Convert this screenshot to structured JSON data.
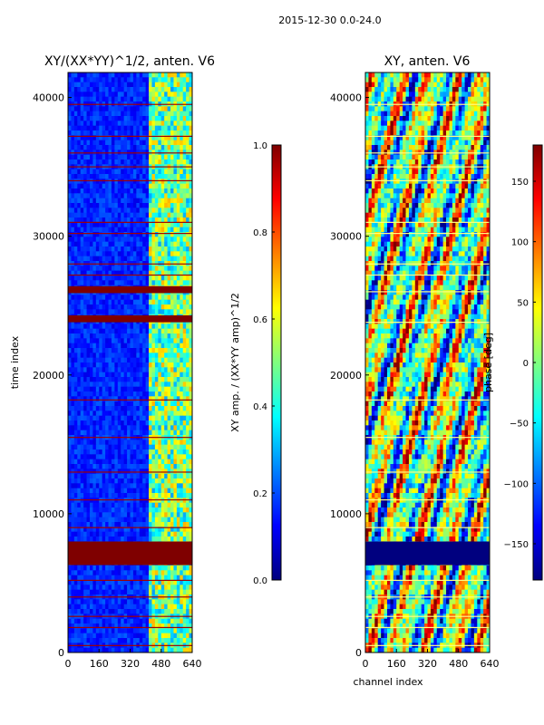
{
  "suptitle": "2015-12-30 0.0-24.0",
  "chart_data": [
    {
      "type": "heatmap",
      "title": "XY/(XX*YY)^1/2, anten. V6",
      "xlabel": "",
      "ylabel": "time index",
      "xlim": [
        0,
        640
      ],
      "ylim": [
        0,
        41800
      ],
      "xticks": [
        0,
        160,
        320,
        480,
        640
      ],
      "yticks": [
        0,
        10000,
        20000,
        30000,
        40000
      ],
      "colormap": "jet",
      "color_range": [
        0.0,
        1.0
      ],
      "colorbar_label": "XY amp. / (XX*YY amp)^1/2",
      "colorbar_ticks": [
        0.0,
        0.2,
        0.4,
        0.6,
        0.8,
        1.0
      ],
      "bright_channel_band": [
        420,
        640
      ],
      "flagged_time_bands": [
        [
          6300,
          8000
        ],
        [
          23800,
          24300
        ],
        [
          25900,
          26400
        ]
      ],
      "thin_flag_rows": [
        500,
        1800,
        2600,
        4000,
        5200,
        9000,
        11000,
        13000,
        15500,
        18200,
        27200,
        28000,
        30200,
        31000,
        34000,
        35000,
        36000,
        37200,
        39500
      ]
    },
    {
      "type": "heatmap",
      "title": "XY, anten. V6",
      "xlabel": "channel index",
      "ylabel": "",
      "xlim": [
        0,
        640
      ],
      "ylim": [
        0,
        41800
      ],
      "xticks": [
        0,
        160,
        320,
        480,
        640
      ],
      "yticks": [
        0,
        10000,
        20000,
        30000,
        40000
      ],
      "colormap": "jet",
      "color_range": [
        -180,
        180
      ],
      "colorbar_label": "phase [deg]",
      "colorbar_ticks": [
        -150,
        -100,
        -50,
        0,
        50,
        100,
        150
      ],
      "flagged_time_bands": [
        [
          6300,
          8000
        ]
      ],
      "thin_flag_rows": [
        500,
        1800,
        2600,
        4000,
        5200,
        9000,
        11000,
        13000,
        15500,
        18200,
        23800,
        26000,
        27200,
        28000,
        30200,
        31000,
        34000,
        35000,
        36000,
        37200,
        39500
      ]
    }
  ]
}
